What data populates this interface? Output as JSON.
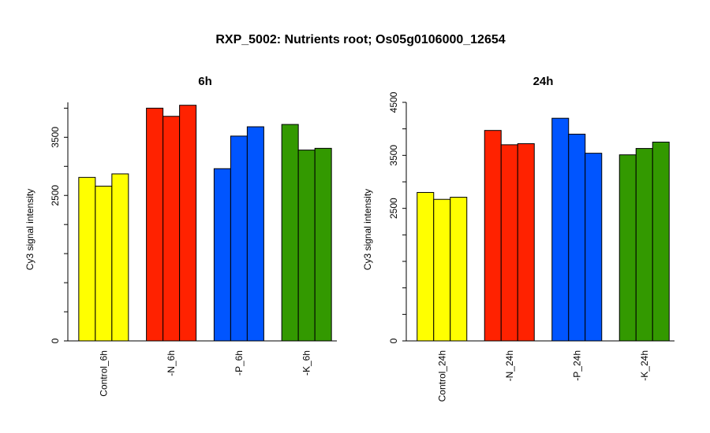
{
  "title": "RXP_5002: Nutrients root; Os05g0106000_12654",
  "chart_data": [
    {
      "type": "bar",
      "title": "6h",
      "ylabel": "Cy3 signal intensity",
      "xlabel": "",
      "ylim": [
        0,
        4100
      ],
      "yticks": [
        0,
        2500,
        3500
      ],
      "categories": [
        "Control_6h",
        "-N_6h",
        "-P_6h",
        "-K_6h"
      ],
      "colors": [
        "#ffff00",
        "#ff2200",
        "#0055ff",
        "#339900"
      ],
      "values": [
        [
          2810,
          2660,
          2870
        ],
        [
          4000,
          3860,
          4050
        ],
        [
          2960,
          3520,
          3680
        ],
        [
          3720,
          3280,
          3310
        ]
      ]
    },
    {
      "type": "bar",
      "title": "24h",
      "ylabel": "Cy3 signal intensity",
      "xlabel": "",
      "ylim": [
        0,
        4500
      ],
      "yticks": [
        0,
        2500,
        3500,
        4500
      ],
      "categories": [
        "Control_24h",
        "-N_24h",
        "-P_24h",
        "-K_24h"
      ],
      "colors": [
        "#ffff00",
        "#ff2200",
        "#0055ff",
        "#339900"
      ],
      "values": [
        [
          2800,
          2670,
          2710
        ],
        [
          3970,
          3700,
          3720
        ],
        [
          4200,
          3900,
          3540
        ],
        [
          3510,
          3630,
          3750
        ]
      ]
    }
  ]
}
